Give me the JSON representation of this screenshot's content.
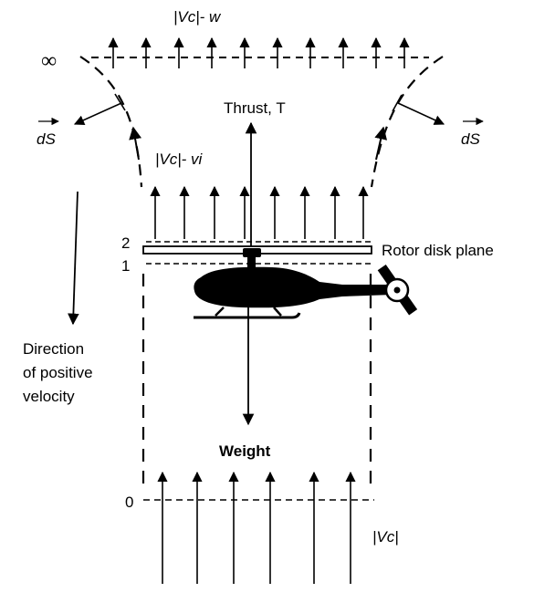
{
  "labels": {
    "far_wake_velocity": "|Vc|- w",
    "infinity": "∞",
    "thrust": "Thrust, T",
    "dS_left": "dS",
    "dS_right": "dS",
    "disk_velocity": "|Vc|- vi",
    "station_2": "2",
    "station_1": "1",
    "rotor_disk_plane": "Rotor disk plane",
    "direction_line1": "Direction",
    "direction_line2": "of positive",
    "direction_line3": "velocity",
    "weight": "Weight",
    "station_0": "0",
    "climb_velocity": "|Vc|"
  }
}
